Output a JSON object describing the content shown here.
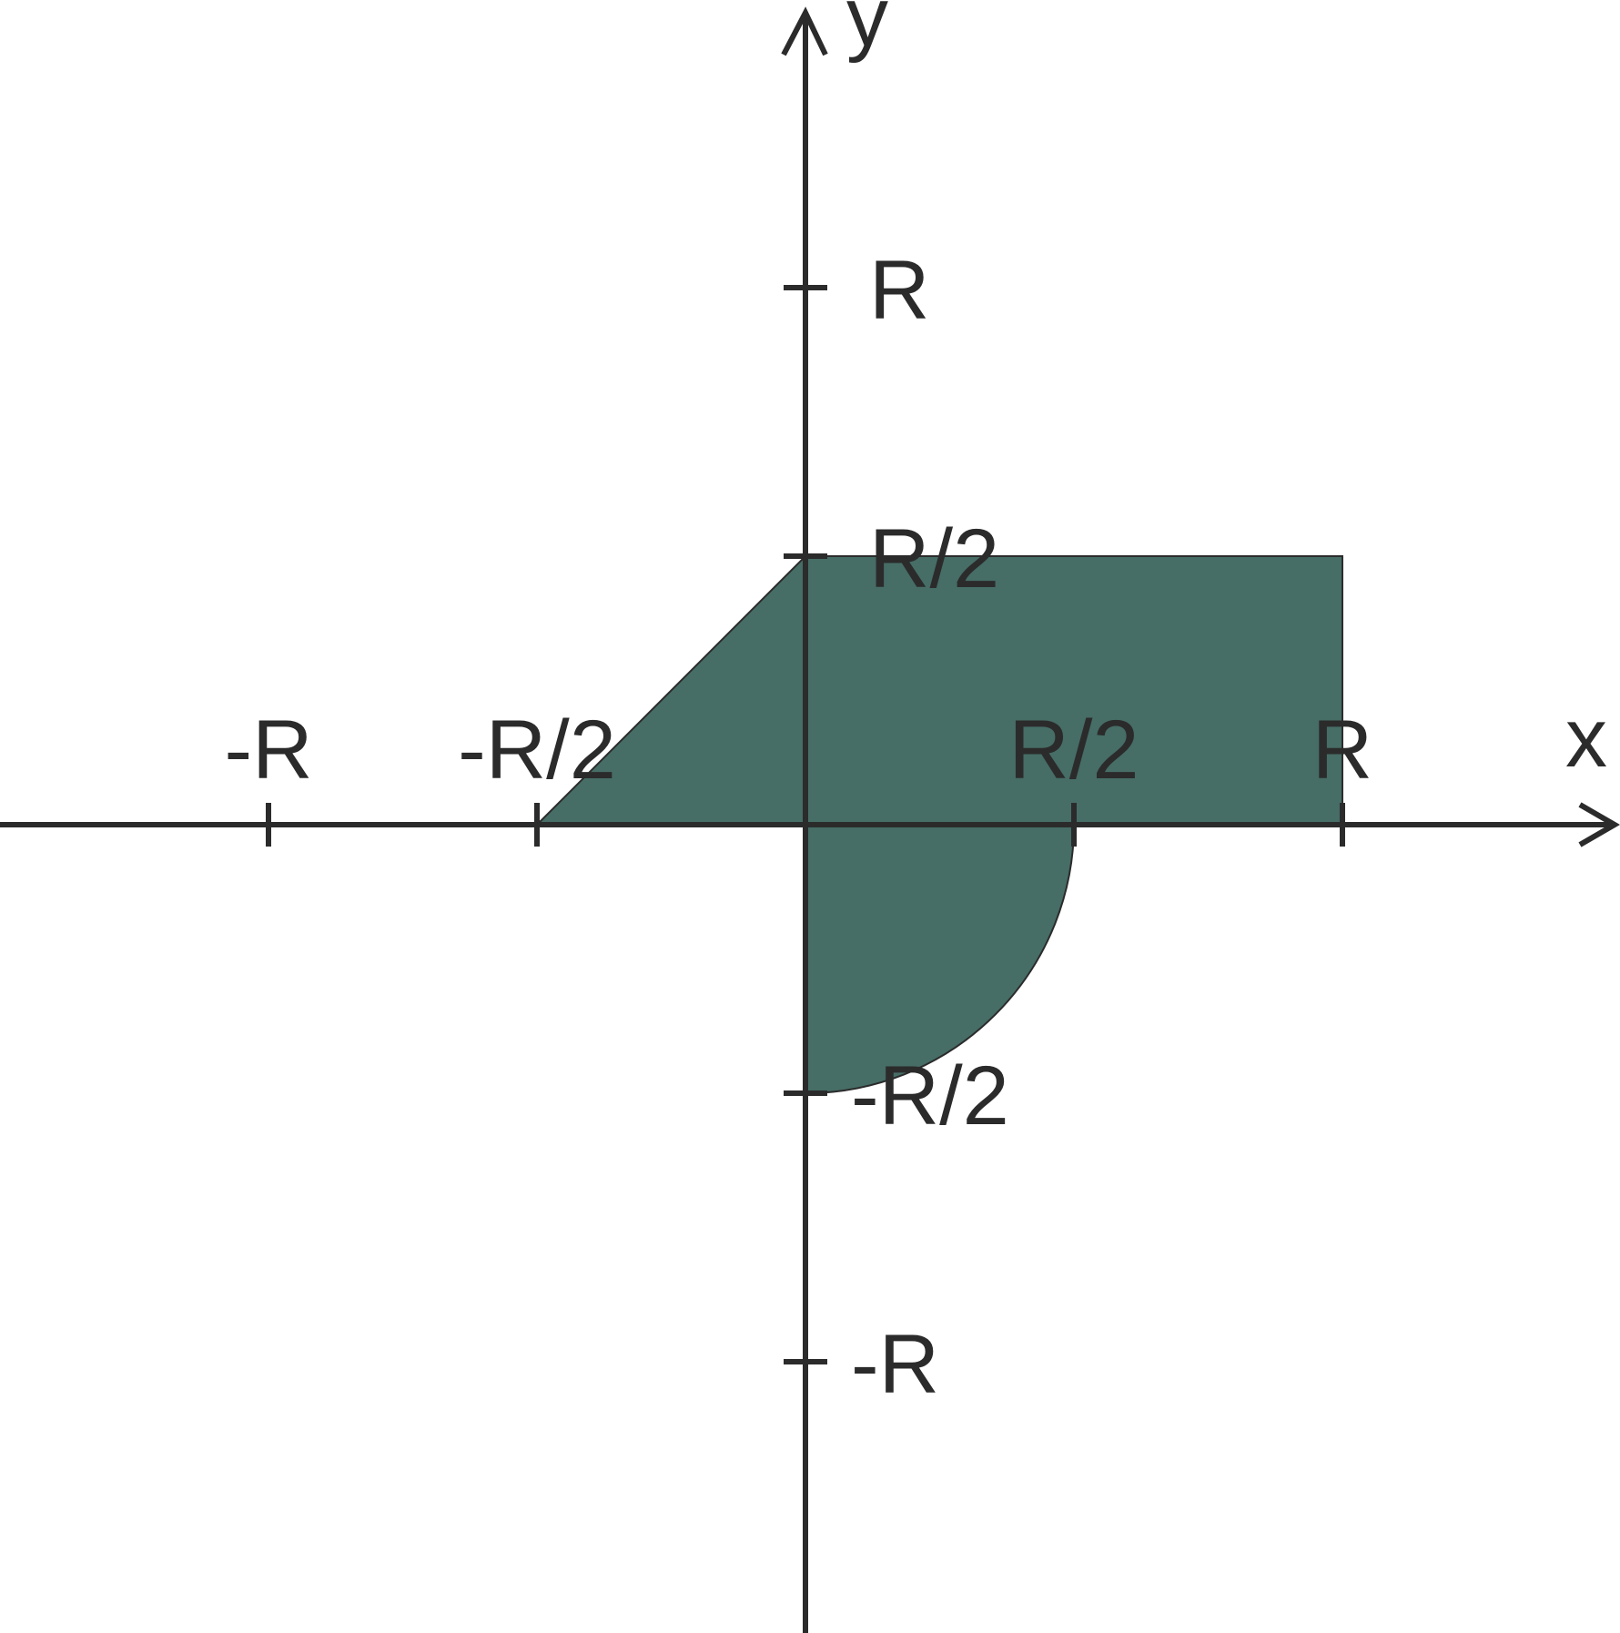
{
  "colors": {
    "region_fill": "#466d66",
    "axis": "#2b2b2b",
    "background": "#ffffff"
  },
  "axes": {
    "x_label": "x",
    "y_label": "y"
  },
  "ticks": {
    "x": [
      {
        "value": -1,
        "label": "-R"
      },
      {
        "value": -0.5,
        "label": "-R/2"
      },
      {
        "value": 0.5,
        "label": "R/2"
      },
      {
        "value": 1,
        "label": "R"
      }
    ],
    "y": [
      {
        "value": 1,
        "label": "R"
      },
      {
        "value": 0.5,
        "label": "R/2"
      },
      {
        "value": -0.5,
        "label": "-R/2"
      },
      {
        "value": -1,
        "label": "-R"
      }
    ]
  },
  "region": {
    "triangle_quadrant_II": {
      "vertices": [
        [
          -0.5,
          0
        ],
        [
          0,
          0.5
        ],
        [
          0,
          0
        ]
      ]
    },
    "rectangle_quadrant_I": {
      "x": [
        0,
        1
      ],
      "y": [
        0,
        0.5
      ]
    },
    "quarter_circle_quadrant_IV": {
      "radius": 0.5
    }
  }
}
